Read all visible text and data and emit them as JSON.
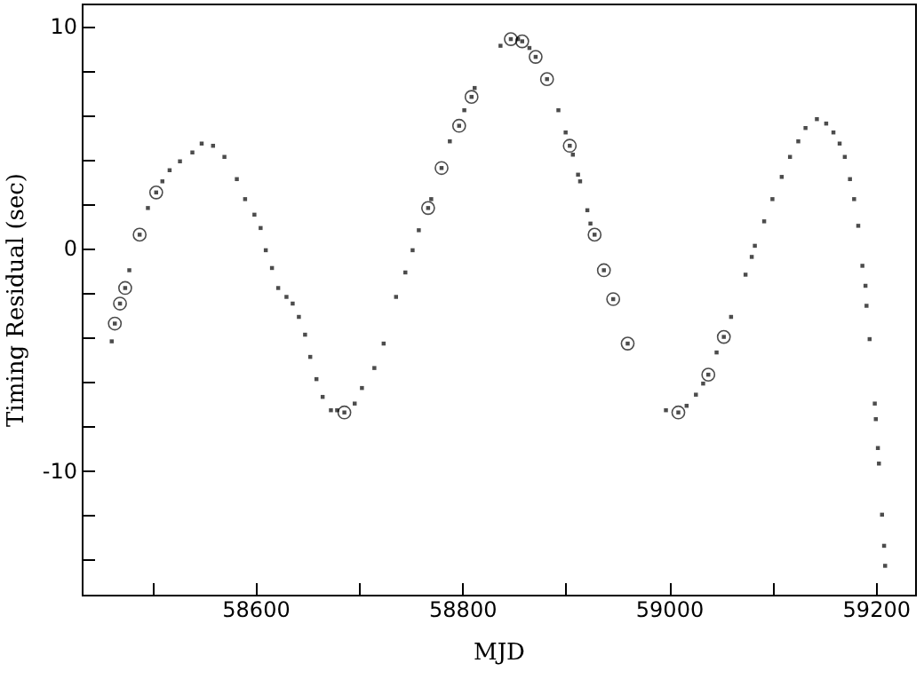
{
  "chart_data": {
    "type": "scatter",
    "xlabel": "MJD",
    "ylabel": "Timing Residual (sec)",
    "xlim": [
      58432,
      59238
    ],
    "ylim": [
      -15.6,
      11
    ],
    "xticks": [
      {
        "value": 58500,
        "label": null
      },
      58600,
      {
        "value": 58700,
        "label": null
      },
      58800,
      {
        "value": 58900,
        "label": null
      },
      59000,
      {
        "value": 59100,
        "label": null
      },
      59200
    ],
    "yticks": [
      {
        "value": -14,
        "label": null
      },
      {
        "value": -12,
        "label": null
      },
      -10,
      {
        "value": -8,
        "label": null
      },
      {
        "value": -6,
        "label": null
      },
      {
        "value": -4,
        "label": null
      },
      {
        "value": -2,
        "label": null
      },
      0,
      {
        "value": 2,
        "label": null
      },
      {
        "value": 4,
        "label": null
      },
      {
        "value": 6,
        "label": null
      },
      {
        "value": 8,
        "label": null
      },
      10
    ],
    "grid": false,
    "series": [
      {
        "color": "#000000",
        "marker": "square",
        "x": [
          58461,
          58464,
          58469,
          58474,
          58478,
          58488,
          58496,
          58504,
          58510,
          58517,
          58527,
          58539,
          58548,
          58559,
          58570,
          58582,
          58590,
          58599,
          58605,
          58610,
          58616,
          58622,
          58630,
          58636,
          58642,
          58648,
          58653,
          58659,
          58665,
          58673,
          58679,
          58686,
          58696,
          58703,
          58715,
          58724,
          58736,
          58745,
          58752,
          58758,
          58767,
          58770,
          58780,
          58788,
          58797,
          58802,
          58809,
          58812,
          58837,
          58847,
          58854,
          58858,
          58865,
          58871,
          58882,
          58893,
          58900,
          58904,
          58907,
          58912,
          58914,
          58921,
          58924,
          58928,
          58937,
          58946,
          58960,
          58997,
          59009,
          59017,
          59026,
          59033,
          59038,
          59046,
          59053,
          59060,
          59074,
          59080,
          59083,
          59092,
          59100,
          59109,
          59117,
          59125,
          59132,
          59143,
          59152,
          59159,
          59165,
          59170,
          59175,
          59179,
          59183,
          59187,
          59190,
          59191,
          59194,
          59199,
          59200,
          59202,
          59203,
          59206,
          59208,
          59209
        ],
        "values": [
          -4.2,
          -3.4,
          -2.5,
          -1.8,
          -1.0,
          0.6,
          1.8,
          2.5,
          3.0,
          3.5,
          3.9,
          4.3,
          4.7,
          4.6,
          4.1,
          3.1,
          2.2,
          1.5,
          0.9,
          -0.1,
          -0.9,
          -1.8,
          -2.2,
          -2.5,
          -3.1,
          -3.9,
          -4.9,
          -5.9,
          -6.7,
          -7.3,
          -7.3,
          -7.4,
          -7.0,
          -6.3,
          -5.4,
          -4.3,
          -2.2,
          -1.1,
          -0.1,
          0.8,
          1.8,
          2.2,
          3.6,
          4.8,
          5.5,
          6.2,
          6.8,
          7.2,
          9.1,
          9.4,
          9.4,
          9.3,
          9.0,
          8.6,
          7.6,
          6.2,
          5.2,
          4.6,
          4.2,
          3.3,
          3.0,
          1.7,
          1.1,
          0.6,
          -1.0,
          -2.3,
          -4.3,
          -7.3,
          -7.4,
          -7.1,
          -6.6,
          -6.1,
          -5.7,
          -4.7,
          -4.0,
          -3.1,
          -1.2,
          -0.4,
          0.1,
          1.2,
          2.2,
          3.2,
          4.1,
          4.8,
          5.4,
          5.8,
          5.6,
          5.2,
          4.7,
          4.1,
          3.1,
          2.2,
          1.0,
          -0.8,
          -1.7,
          -2.6,
          -4.1,
          -7.0,
          -7.7,
          -9.0,
          -9.7,
          -12.0,
          -13.4,
          -14.3
        ]
      },
      {
        "color": "#000000",
        "marker": "circle",
        "x": [
          58464,
          58469,
          58474,
          58488,
          58504,
          58686,
          58767,
          58780,
          58797,
          58809,
          58847,
          58858,
          58871,
          58882,
          58904,
          58928,
          58937,
          58946,
          58960,
          59009,
          59038,
          59053
        ],
        "values": [
          -3.4,
          -2.5,
          -1.8,
          0.6,
          2.5,
          -7.4,
          1.8,
          3.6,
          5.5,
          6.8,
          9.4,
          9.3,
          8.6,
          7.6,
          4.6,
          0.6,
          -1.0,
          -2.3,
          -4.3,
          -7.4,
          -5.7,
          -4.0
        ]
      }
    ]
  }
}
